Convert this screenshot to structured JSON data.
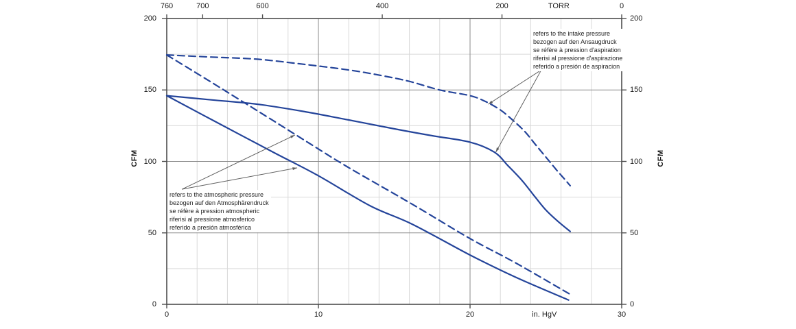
{
  "chart_data": {
    "type": "line",
    "title": "",
    "x_axis_bottom": {
      "unit_label": "in. HgV",
      "range": [
        0,
        30
      ],
      "major_ticks": [
        0,
        10,
        20,
        30
      ],
      "minor_step": 2,
      "unit_label_position": 24.9
    },
    "x_axis_top": {
      "unit_label": "TORR",
      "range": [
        760,
        0
      ],
      "major_ticks": [
        760,
        700,
        600,
        400,
        200,
        0
      ],
      "unit_label_position_torr": 105
    },
    "y_axis_left": {
      "label": "CFM",
      "range": [
        0,
        200
      ],
      "major_ticks": [
        0,
        50,
        100,
        150,
        200
      ],
      "minor_step": 25
    },
    "y_axis_right": {
      "label": "CFM",
      "range": [
        0,
        200
      ],
      "major_ticks": [
        0,
        50,
        100,
        150,
        200
      ]
    },
    "grid": {
      "major": true,
      "minor": true
    },
    "series": [
      {
        "name": "flow referred to intake pressure (dashed curve)",
        "style": "dashed",
        "points": [
          [
            0,
            174.5
          ],
          [
            3,
            173
          ],
          [
            6,
            171.5
          ],
          [
            9,
            168
          ],
          [
            12,
            164
          ],
          [
            14.2,
            160
          ],
          [
            16,
            156
          ],
          [
            18,
            150
          ],
          [
            20,
            146
          ],
          [
            21,
            142
          ],
          [
            22,
            136
          ],
          [
            22.8,
            129
          ],
          [
            23.6,
            121
          ],
          [
            24.3,
            112
          ],
          [
            25,
            103
          ],
          [
            25.7,
            94
          ],
          [
            26.2,
            88
          ],
          [
            26.6,
            83
          ]
        ]
      },
      {
        "name": "flow referred to intake pressure (solid curve)",
        "style": "solid",
        "points": [
          [
            0,
            146
          ],
          [
            3,
            143
          ],
          [
            6,
            140
          ],
          [
            9,
            135
          ],
          [
            12,
            129
          ],
          [
            14.9,
            123
          ],
          [
            17.5,
            118
          ],
          [
            20,
            113.5
          ],
          [
            21.6,
            106.5
          ],
          [
            22.5,
            97
          ],
          [
            23.4,
            87
          ],
          [
            24.3,
            75
          ],
          [
            25,
            66
          ],
          [
            25.8,
            58
          ],
          [
            26.6,
            51
          ]
        ]
      },
      {
        "name": "flow referred to atmospheric pressure (dashed curve)",
        "style": "dashed",
        "points": [
          [
            0,
            174.5
          ],
          [
            3,
            155
          ],
          [
            7.1,
            128
          ],
          [
            9.8,
            110
          ],
          [
            12.1,
            95
          ],
          [
            16.2,
            70
          ],
          [
            20,
            46
          ],
          [
            23,
            29
          ],
          [
            26.6,
            7
          ]
        ]
      },
      {
        "name": "flow referred to atmospheric pressure (solid curve)",
        "style": "solid",
        "points": [
          [
            0,
            146
          ],
          [
            3,
            129
          ],
          [
            7.1,
            106
          ],
          [
            10,
            90
          ],
          [
            13.4,
            69
          ],
          [
            16.2,
            56
          ],
          [
            20,
            34.5
          ],
          [
            23,
            19
          ],
          [
            26.5,
            3
          ]
        ]
      }
    ],
    "leader_lines": [
      {
        "group": "intake",
        "from": [
          24.7,
          164
        ],
        "to": [
          21.2,
          140
        ]
      },
      {
        "group": "intake",
        "from": [
          24.7,
          164
        ],
        "to": [
          21.7,
          106.5
        ]
      },
      {
        "group": "atmospheric",
        "from": [
          1.0,
          80.5
        ],
        "to": [
          8.46,
          118.5
        ]
      },
      {
        "group": "atmospheric",
        "from": [
          1.0,
          80.5
        ],
        "to": [
          8.6,
          95.5
        ]
      }
    ]
  },
  "annotations": {
    "intake": {
      "lines": [
        "refers to the intake pressure",
        "bezogen auf den Ansaugdruck",
        "se réfère à pression d'aspiration",
        "riferisi al pressione d'aspirazione",
        "referido a presión de aspiracion"
      ]
    },
    "atmospheric": {
      "lines": [
        "refers to the atmospheric pressure",
        "bezogen auf den Atmosphärendruck",
        "se réfère à pression atmospheric",
        "riferisi al pressione atmosferico",
        "referido a presión atmosférica"
      ]
    }
  },
  "colors": {
    "curve_blue": "#24449a",
    "grid_minor": "#d9d9d9",
    "grid_major": "#8a8a8a",
    "frame": "#4d4d4d",
    "leader_gray": "#5f5f5f",
    "text": "#1a1a1a"
  }
}
